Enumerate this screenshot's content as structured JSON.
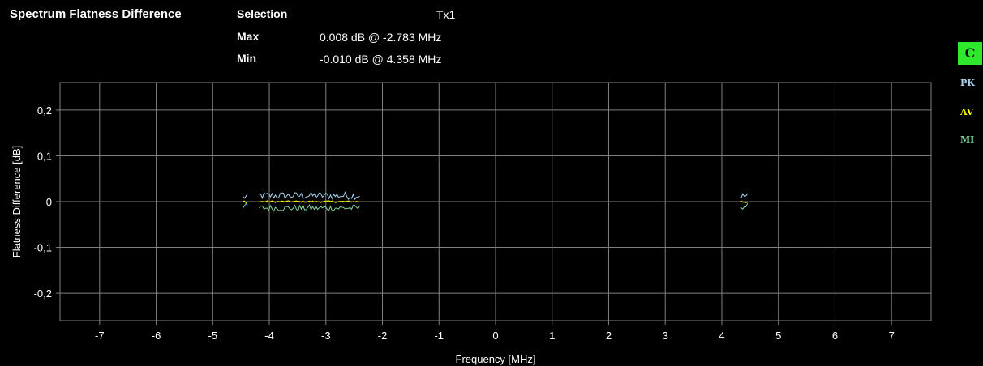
{
  "header": {
    "title": "Spectrum Flatness Difference",
    "selection_label": "Selection",
    "selection_value": "Tx1",
    "max_label": "Max",
    "max_value": "0.008 dB @ -2.783 MHz",
    "min_label": "Min",
    "min_value": "-0.010 dB @ 4.358 MHz"
  },
  "traces": {
    "clear_label": "C",
    "pk_label": "PK",
    "av_label": "AV",
    "mi_label": "MI",
    "colors": {
      "clear_bg": "#2ee82e",
      "pk": "#a8d4f0",
      "av": "#ffff00",
      "mi": "#7fd69a"
    }
  },
  "chart_data": {
    "type": "line",
    "xlabel": "Frequency [MHz]",
    "ylabel": "Flatness Difference [dB]",
    "xlim": [
      -7.7,
      7.7
    ],
    "ylim": [
      -0.26,
      0.26
    ],
    "x_ticks": [
      -7,
      -6,
      -5,
      -4,
      -3,
      -2,
      -1,
      0,
      1,
      2,
      3,
      4,
      5,
      6,
      7
    ],
    "x_tick_labels": [
      "-7",
      "-6",
      "-5",
      "-4",
      "-3",
      "-2",
      "-1",
      "0",
      "1",
      "2",
      "3",
      "4",
      "5",
      "6",
      "7"
    ],
    "y_ticks": [
      0.2,
      0.1,
      0,
      -0.1,
      -0.2
    ],
    "y_tick_labels": [
      "0,2",
      "0,1",
      "0",
      "-0,1",
      "-0,2"
    ],
    "grid": true,
    "series": [
      {
        "name": "PK",
        "color": "#a8d4f0",
        "segments": [
          {
            "x_range": [
              -4.47,
              -4.37
            ],
            "level": 0.01,
            "jitter": 0.007
          },
          {
            "x_range": [
              -4.18,
              -2.38
            ],
            "level": 0.013,
            "jitter": 0.008
          },
          {
            "x_range": [
              4.34,
              4.47
            ],
            "level": 0.012,
            "jitter": 0.008
          }
        ]
      },
      {
        "name": "AV",
        "color": "#ffff00",
        "segments": [
          {
            "x_range": [
              -4.47,
              -4.37
            ],
            "level": 0.0,
            "jitter": 0.003
          },
          {
            "x_range": [
              -4.18,
              -2.38
            ],
            "level": 0.0,
            "jitter": 0.002
          },
          {
            "x_range": [
              4.34,
              4.47
            ],
            "level": 0.0,
            "jitter": 0.004
          }
        ]
      },
      {
        "name": "MI",
        "color": "#7fd69a",
        "segments": [
          {
            "x_range": [
              -4.47,
              -4.37
            ],
            "level": -0.01,
            "jitter": 0.006
          },
          {
            "x_range": [
              -4.18,
              -2.38
            ],
            "level": -0.014,
            "jitter": 0.007
          },
          {
            "x_range": [
              4.34,
              4.47
            ],
            "level": -0.01,
            "jitter": 0.007
          }
        ]
      }
    ]
  }
}
